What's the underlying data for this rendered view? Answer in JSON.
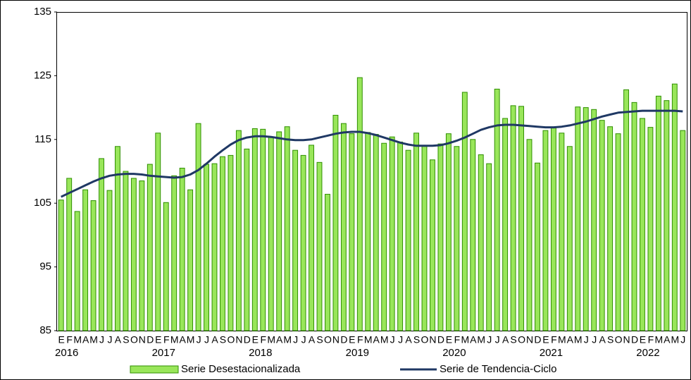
{
  "chart_data": {
    "type": "bar",
    "categories": [
      "E",
      "F",
      "M",
      "A",
      "M",
      "J",
      "J",
      "A",
      "S",
      "O",
      "N",
      "D",
      "E",
      "F",
      "M",
      "A",
      "M",
      "J",
      "J",
      "A",
      "S",
      "O",
      "N",
      "D",
      "E",
      "F",
      "M",
      "A",
      "M",
      "J",
      "J",
      "A",
      "S",
      "O",
      "N",
      "D",
      "E",
      "F",
      "M",
      "A",
      "M",
      "J",
      "J",
      "A",
      "S",
      "O",
      "N",
      "D",
      "E",
      "F",
      "M",
      "A",
      "M",
      "J",
      "J",
      "A",
      "S",
      "O",
      "N",
      "D",
      "E",
      "F",
      "M",
      "A",
      "M",
      "J",
      "J",
      "A",
      "S",
      "O",
      "N",
      "D",
      "E",
      "F",
      "M",
      "A",
      "M",
      "J"
    ],
    "years": [
      "2016",
      "2017",
      "2018",
      "2019",
      "2020",
      "2021",
      "2022"
    ],
    "series": [
      {
        "name": "Serie Desestacionalizada",
        "type": "bar",
        "color": "#99e65a",
        "edge": "#2f8f00",
        "values": [
          105.5,
          108.9,
          103.7,
          107.1,
          105.4,
          112.0,
          107.0,
          113.9,
          110.0,
          108.9,
          108.5,
          111.1,
          116.0,
          105.1,
          109.3,
          110.5,
          107.1,
          117.5,
          111.1,
          111.2,
          112.3,
          112.5,
          116.4,
          113.5,
          116.7,
          116.6,
          115.3,
          116.2,
          117.0,
          113.3,
          112.5,
          114.1,
          111.4,
          106.4,
          118.8,
          117.5,
          115.9,
          124.7,
          116.1,
          115.8,
          114.4,
          115.4,
          114.6,
          113.3,
          116.0,
          114.0,
          111.8,
          114.3,
          115.9,
          113.9,
          122.4,
          115.0,
          112.6,
          111.2,
          122.9,
          118.3,
          120.3,
          120.2,
          115.0,
          111.3,
          116.4,
          116.8,
          116.0,
          113.9,
          120.1,
          120.0,
          119.7,
          118.0,
          117.0,
          115.9,
          122.8,
          120.8,
          118.3,
          116.9,
          121.8,
          121.1,
          123.7,
          116.4
        ]
      },
      {
        "name": "Serie de Tendencia-Ciclo",
        "type": "line",
        "color": "#1f3864",
        "values": [
          106.0,
          106.6,
          107.2,
          107.8,
          108.4,
          108.9,
          109.3,
          109.5,
          109.6,
          109.6,
          109.5,
          109.3,
          109.2,
          109.1,
          109.0,
          109.1,
          109.5,
          110.2,
          111.2,
          112.3,
          113.3,
          114.2,
          114.9,
          115.3,
          115.5,
          115.5,
          115.4,
          115.2,
          115.0,
          114.9,
          114.9,
          115.0,
          115.3,
          115.6,
          115.9,
          116.1,
          116.2,
          116.2,
          116.0,
          115.7,
          115.3,
          114.9,
          114.5,
          114.2,
          114.0,
          114.0,
          114.0,
          114.1,
          114.4,
          114.8,
          115.3,
          115.9,
          116.5,
          116.9,
          117.2,
          117.3,
          117.3,
          117.2,
          117.1,
          117.0,
          116.9,
          116.9,
          117.0,
          117.2,
          117.5,
          117.8,
          118.2,
          118.6,
          118.9,
          119.2,
          119.3,
          119.4,
          119.5,
          119.5,
          119.5,
          119.5,
          119.5,
          119.4
        ]
      }
    ],
    "ylim": [
      85,
      135
    ],
    "yticks": [
      85,
      95,
      105,
      115,
      125,
      135
    ]
  }
}
